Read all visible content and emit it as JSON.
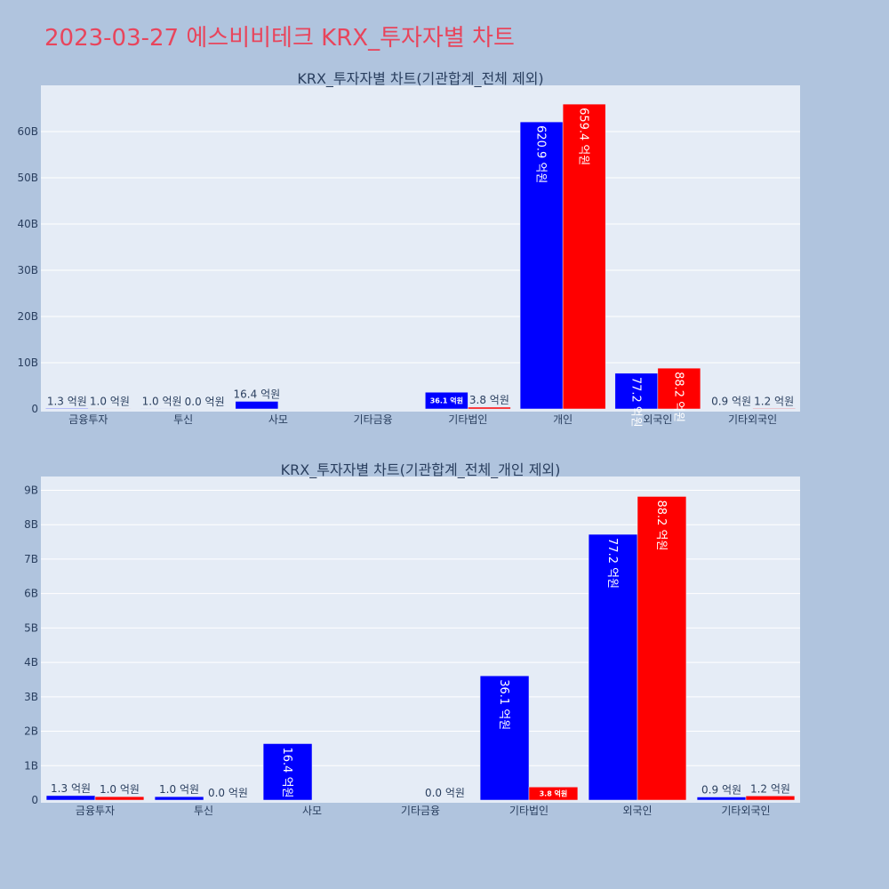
{
  "page": {
    "title": "2023-03-27 에스비비테크 KRX_투자자별 차트"
  },
  "chart_data": [
    {
      "type": "bar",
      "title": "KRX_투자자별 차트(기관합계_전체 제외)",
      "categories": [
        "금융투자",
        "투신",
        "사모",
        "기타금융",
        "기타법인",
        "개인",
        "외국인",
        "기타외국인"
      ],
      "yticks": [
        "0",
        "10B",
        "20B",
        "30B",
        "40B",
        "50B",
        "60B"
      ],
      "ylim": [
        0,
        70000000000
      ],
      "grid": true,
      "series": [
        {
          "color": "#0000ff",
          "values": [
            130000000,
            100000000,
            1640000000,
            null,
            3610000000,
            62090000000,
            7720000000,
            90000000
          ],
          "labels": [
            "1.3 억원",
            "1.0 억원",
            "16.4 억원",
            "",
            "36.1 억원",
            "620.9 억원",
            "77.2 억원",
            "0.9 억원"
          ]
        },
        {
          "color": "#ff0000",
          "values": [
            100000000,
            0,
            null,
            null,
            380000000,
            65940000000,
            8820000000,
            120000000
          ],
          "labels": [
            "1.0 억원",
            "0.0 억원",
            "",
            "",
            "3.8 억원",
            "659.4 억원",
            "88.2 억원",
            "1.2 억원"
          ]
        }
      ]
    },
    {
      "type": "bar",
      "title": "KRX_투자자별 차트(기관합계_전체_개인 제외)",
      "categories": [
        "금융투자",
        "투신",
        "사모",
        "기타금융",
        "기타법인",
        "외국인",
        "기타외국인"
      ],
      "yticks": [
        "0",
        "1B",
        "2B",
        "3B",
        "4B",
        "5B",
        "6B",
        "7B",
        "8B",
        "9B"
      ],
      "ylim": [
        0,
        9400000000
      ],
      "grid": true,
      "series": [
        {
          "color": "#0000ff",
          "values": [
            130000000,
            100000000,
            1640000000,
            null,
            3610000000,
            7720000000,
            90000000
          ],
          "labels": [
            "1.3 억원",
            "1.0 억원",
            "16.4 억원",
            "",
            "36.1 억원",
            "77.2 억원",
            "0.9 억원"
          ]
        },
        {
          "color": "#ff0000",
          "values": [
            100000000,
            0,
            null,
            0,
            380000000,
            8820000000,
            120000000
          ],
          "labels": [
            "1.0 억원",
            "0.0 억원",
            "",
            "0.0 억원",
            "3.8 억원",
            "88.2 억원",
            "1.2 억원"
          ]
        }
      ]
    }
  ]
}
